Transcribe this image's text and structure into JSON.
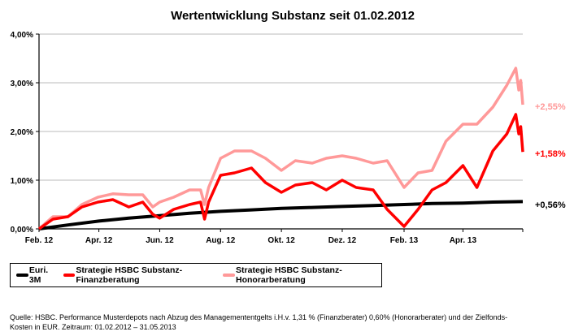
{
  "chart_data": {
    "type": "line",
    "title": "Wertentwicklung Substanz seit 01.02.2012",
    "xlabel": "",
    "ylabel": "",
    "xlim": [
      "2012-02-01",
      "2013-05-31"
    ],
    "ylim": [
      0,
      4
    ],
    "y_ticks": [
      "0,00%",
      "1,00%",
      "2,00%",
      "3,00%",
      "4,00%"
    ],
    "x_ticks": [
      {
        "date": "2012-02-01",
        "label": "Feb. 12"
      },
      {
        "date": "2012-04-01",
        "label": "Apr. 12"
      },
      {
        "date": "2012-06-01",
        "label": "Jun. 12"
      },
      {
        "date": "2012-08-01",
        "label": "Aug. 12"
      },
      {
        "date": "2012-10-01",
        "label": "Okt. 12"
      },
      {
        "date": "2012-12-01",
        "label": "Dez. 12"
      },
      {
        "date": "2013-02-01",
        "label": "Feb. 13"
      },
      {
        "date": "2013-04-01",
        "label": "Apr. 13"
      }
    ],
    "grid": "horizontal",
    "legend_placement": "bottom",
    "series": [
      {
        "name": "Euri. 3M",
        "color": "#000000",
        "end_label": "+0,56%",
        "points": [
          [
            "2012-02-01",
            0
          ],
          [
            "2012-03-01",
            0.08
          ],
          [
            "2012-04-01",
            0.16
          ],
          [
            "2012-05-01",
            0.22
          ],
          [
            "2012-06-01",
            0.27
          ],
          [
            "2012-07-01",
            0.32
          ],
          [
            "2012-08-01",
            0.36
          ],
          [
            "2012-09-01",
            0.39
          ],
          [
            "2012-10-01",
            0.42
          ],
          [
            "2012-11-01",
            0.44
          ],
          [
            "2012-12-01",
            0.46
          ],
          [
            "2013-01-01",
            0.48
          ],
          [
            "2013-02-01",
            0.5
          ],
          [
            "2013-03-01",
            0.52
          ],
          [
            "2013-04-01",
            0.53
          ],
          [
            "2013-05-01",
            0.55
          ],
          [
            "2013-05-31",
            0.56
          ]
        ]
      },
      {
        "name": "Strategie HSBC Substanz-Finanzberatung",
        "color": "#ff0000",
        "end_label": "+1,58%",
        "points": [
          [
            "2012-02-01",
            0
          ],
          [
            "2012-02-15",
            0.2
          ],
          [
            "2012-03-01",
            0.25
          ],
          [
            "2012-03-15",
            0.45
          ],
          [
            "2012-03-31",
            0.55
          ],
          [
            "2012-04-15",
            0.6
          ],
          [
            "2012-05-01",
            0.45
          ],
          [
            "2012-05-15",
            0.55
          ],
          [
            "2012-05-25",
            0.3
          ],
          [
            "2012-06-01",
            0.22
          ],
          [
            "2012-06-15",
            0.4
          ],
          [
            "2012-07-01",
            0.5
          ],
          [
            "2012-07-12",
            0.55
          ],
          [
            "2012-07-16",
            0.2
          ],
          [
            "2012-07-20",
            0.55
          ],
          [
            "2012-08-01",
            1.1
          ],
          [
            "2012-08-15",
            1.15
          ],
          [
            "2012-09-01",
            1.25
          ],
          [
            "2012-09-15",
            0.95
          ],
          [
            "2012-10-01",
            0.75
          ],
          [
            "2012-10-15",
            0.9
          ],
          [
            "2012-11-01",
            0.95
          ],
          [
            "2012-11-15",
            0.8
          ],
          [
            "2012-12-01",
            1.0
          ],
          [
            "2012-12-15",
            0.85
          ],
          [
            "2013-01-01",
            0.8
          ],
          [
            "2013-01-15",
            0.4
          ],
          [
            "2013-02-01",
            0.05
          ],
          [
            "2013-02-15",
            0.4
          ],
          [
            "2013-03-01",
            0.8
          ],
          [
            "2013-03-15",
            0.95
          ],
          [
            "2013-04-01",
            1.3
          ],
          [
            "2013-04-15",
            0.85
          ],
          [
            "2013-05-01",
            1.6
          ],
          [
            "2013-05-15",
            1.95
          ],
          [
            "2013-05-24",
            2.35
          ],
          [
            "2013-05-27",
            1.95
          ],
          [
            "2013-05-29",
            2.1
          ],
          [
            "2013-05-31",
            1.58
          ]
        ]
      },
      {
        "name": "Strategie HSBC Substanz-Honorarberatung",
        "color": "#ff9999",
        "end_label": "+2,55%",
        "points": [
          [
            "2012-02-01",
            0
          ],
          [
            "2012-02-15",
            0.25
          ],
          [
            "2012-03-01",
            0.25
          ],
          [
            "2012-03-15",
            0.5
          ],
          [
            "2012-03-31",
            0.65
          ],
          [
            "2012-04-15",
            0.72
          ],
          [
            "2012-05-01",
            0.7
          ],
          [
            "2012-05-15",
            0.7
          ],
          [
            "2012-05-25",
            0.45
          ],
          [
            "2012-06-01",
            0.55
          ],
          [
            "2012-06-15",
            0.65
          ],
          [
            "2012-07-01",
            0.8
          ],
          [
            "2012-07-12",
            0.8
          ],
          [
            "2012-07-16",
            0.5
          ],
          [
            "2012-07-20",
            0.85
          ],
          [
            "2012-08-01",
            1.45
          ],
          [
            "2012-08-15",
            1.6
          ],
          [
            "2012-09-01",
            1.6
          ],
          [
            "2012-09-15",
            1.45
          ],
          [
            "2012-10-01",
            1.2
          ],
          [
            "2012-10-15",
            1.4
          ],
          [
            "2012-11-01",
            1.35
          ],
          [
            "2012-11-15",
            1.45
          ],
          [
            "2012-12-01",
            1.5
          ],
          [
            "2012-12-15",
            1.45
          ],
          [
            "2013-01-01",
            1.35
          ],
          [
            "2013-01-15",
            1.4
          ],
          [
            "2013-02-01",
            0.85
          ],
          [
            "2013-02-15",
            1.15
          ],
          [
            "2013-03-01",
            1.2
          ],
          [
            "2013-03-15",
            1.8
          ],
          [
            "2013-04-01",
            2.15
          ],
          [
            "2013-04-15",
            2.15
          ],
          [
            "2013-05-01",
            2.5
          ],
          [
            "2013-05-15",
            2.95
          ],
          [
            "2013-05-24",
            3.3
          ],
          [
            "2013-05-27",
            2.85
          ],
          [
            "2013-05-29",
            3.05
          ],
          [
            "2013-05-31",
            2.55
          ]
        ]
      }
    ]
  },
  "footnote": {
    "line1": "Quelle: HSBC. Performance Musterdepots nach Abzug des Managemententgelts i.H.v. 1,31 % (Finanzberater) 0,60% (Honorarberater) und der Zielfonds-",
    "line2": "Kosten in EUR. Zeitraum: 01.02.2012 – 31.05.2013"
  }
}
